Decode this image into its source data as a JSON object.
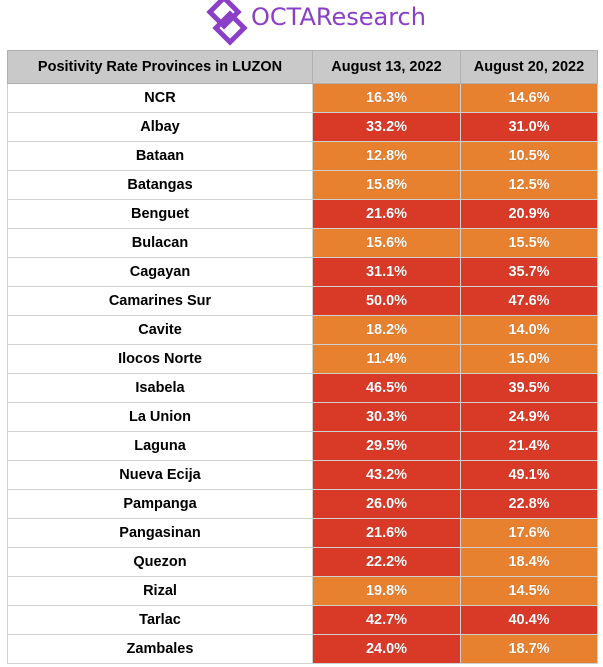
{
  "logo": {
    "text": "OCTAResearch",
    "color": "#8a3fc6"
  },
  "colors": {
    "high": "#d93a28",
    "low": "#e8812f",
    "header_bg": "#c9c9c9"
  },
  "chart_data": {
    "type": "table",
    "columns": [
      "Positivity Rate Provinces in LUZON",
      "August 13, 2022",
      "August 20, 2022"
    ],
    "rows": [
      [
        "NCR",
        "16.3%",
        "14.6%"
      ],
      [
        "Albay",
        "33.2%",
        "31.0%"
      ],
      [
        "Bataan",
        "12.8%",
        "10.5%"
      ],
      [
        "Batangas",
        "15.8%",
        "12.5%"
      ],
      [
        "Benguet",
        "21.6%",
        "20.9%"
      ],
      [
        "Bulacan",
        "15.6%",
        "15.5%"
      ],
      [
        "Cagayan",
        "31.1%",
        "35.7%"
      ],
      [
        "Camarines Sur",
        "50.0%",
        "47.6%"
      ],
      [
        "Cavite",
        "18.2%",
        "14.0%"
      ],
      [
        "Ilocos Norte",
        "11.4%",
        "15.0%"
      ],
      [
        "Isabela",
        "46.5%",
        "39.5%"
      ],
      [
        "La Union",
        "30.3%",
        "24.9%"
      ],
      [
        "Laguna",
        "29.5%",
        "21.4%"
      ],
      [
        "Nueva Ecija",
        "43.2%",
        "49.1%"
      ],
      [
        "Pampanga",
        "26.0%",
        "22.8%"
      ],
      [
        "Pangasinan",
        "21.6%",
        "17.6%"
      ],
      [
        "Quezon",
        "22.2%",
        "18.4%"
      ],
      [
        "Rizal",
        "19.8%",
        "14.5%"
      ],
      [
        "Tarlac",
        "42.7%",
        "40.4%"
      ],
      [
        "Zambales",
        "24.0%",
        "18.7%"
      ]
    ]
  }
}
